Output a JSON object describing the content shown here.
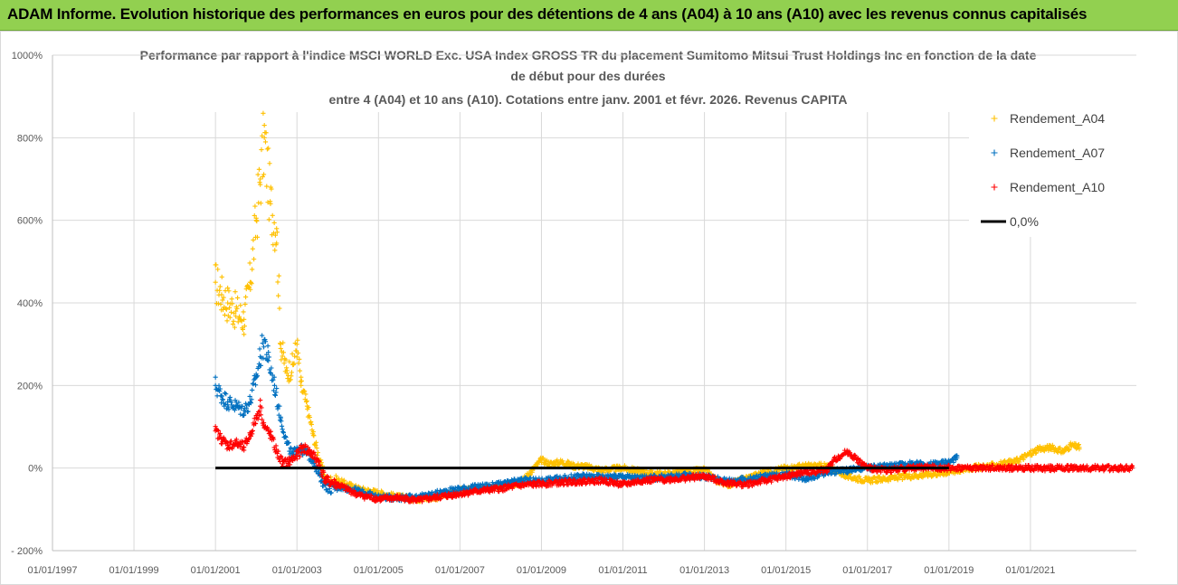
{
  "banner": {
    "title": "ADAM Informe. Evolution historique des performances en euros pour des détentions de 4 ans (A04) à 10 ans (A10) avec les revenus connus capitalisés",
    "color": "#92d050"
  },
  "chart_data": {
    "type": "scatter",
    "title_lines": [
      "Performance par rapport à l'indice MSCI WORLD Exc. USA Index GROSS TR  du placement Sumitomo Mitsui Trust Holdings Inc en fonction de la date",
      "de début pour des durées",
      "entre 4 (A04) et 10 ans (A10). Cotations entre janv. 2001 et févr. 2026. Revenus CAPITA"
    ],
    "xlabel": "",
    "ylabel": "",
    "x_range": [
      1997.0,
      2023.6
    ],
    "ylim": [
      -200,
      1000
    ],
    "y_ticks": [
      -200,
      0,
      200,
      400,
      600,
      800,
      1000
    ],
    "y_tick_labels": [
      "- 200%",
      "0%",
      "200%",
      "400%",
      "600%",
      "800%",
      "1000%"
    ],
    "x_ticks": [
      1997,
      1999,
      2001,
      2003,
      2005,
      2007,
      2009,
      2011,
      2013,
      2015,
      2017,
      2019,
      2021
    ],
    "x_tick_labels": [
      "01/01/1997",
      "01/01/1999",
      "01/01/2001",
      "01/01/2003",
      "01/01/2005",
      "01/01/2007",
      "01/01/2009",
      "01/01/2011",
      "01/01/2013",
      "01/01/2015",
      "01/01/2017",
      "01/01/2019",
      "01/01/2021"
    ],
    "grid": true,
    "legend_position": "right",
    "series": [
      {
        "name": "Rendement_A04",
        "color": "#ffc000",
        "marker": "+",
        "x": [
          2001.0,
          2001.15,
          2001.3,
          2001.5,
          2001.7,
          2001.85,
          2002.0,
          2002.1,
          2002.2,
          2002.35,
          2002.5,
          2002.6,
          2002.75,
          2002.9,
          2003.0,
          2003.1,
          2003.25,
          2003.4,
          2003.55,
          2003.7,
          2004.0,
          2004.5,
          2005.0,
          2005.5,
          2006.0,
          2006.5,
          2007.0,
          2007.5,
          2008.0,
          2008.5,
          2009.0,
          2009.2,
          2009.5,
          2009.8,
          2010.0,
          2010.5,
          2011.0,
          2011.5,
          2012.0,
          2012.5,
          2013.0,
          2013.3,
          2013.6,
          2014.0,
          2014.5,
          2015.0,
          2015.5,
          2016.0,
          2016.5,
          2017.0,
          2017.5,
          2018.0,
          2018.5,
          2019.0,
          2019.5,
          2020.0,
          2020.3,
          2020.6,
          2020.9,
          2021.2,
          2021.5,
          2021.8,
          2022.0,
          2022.2
        ],
        "values": [
          450,
          420,
          400,
          380,
          360,
          450,
          600,
          700,
          800,
          640,
          580,
          300,
          230,
          250,
          300,
          200,
          150,
          80,
          20,
          -30,
          -30,
          -50,
          -60,
          -70,
          -75,
          -70,
          -55,
          -50,
          -45,
          -35,
          20,
          10,
          15,
          5,
          5,
          -5,
          0,
          -10,
          -15,
          -10,
          -5,
          -30,
          -40,
          -25,
          -10,
          0,
          5,
          5,
          -20,
          -30,
          -25,
          -20,
          -15,
          -10,
          0,
          5,
          10,
          15,
          30,
          45,
          50,
          40,
          55,
          50
        ]
      },
      {
        "name": "Rendement_A07",
        "color": "#0070c0",
        "marker": "+",
        "x": [
          2001.0,
          2001.15,
          2001.3,
          2001.5,
          2001.7,
          2001.85,
          2002.0,
          2002.1,
          2002.2,
          2002.3,
          2002.45,
          2002.6,
          2002.75,
          2002.9,
          2003.0,
          2003.2,
          2003.4,
          2003.6,
          2003.8,
          2004.0,
          2004.5,
          2005.0,
          2005.5,
          2006.0,
          2006.5,
          2007.0,
          2007.5,
          2008.0,
          2008.5,
          2009.0,
          2009.5,
          2010.0,
          2010.5,
          2011.0,
          2011.5,
          2012.0,
          2012.5,
          2013.0,
          2013.5,
          2014.0,
          2014.5,
          2015.0,
          2015.5,
          2016.0,
          2016.5,
          2017.0,
          2017.5,
          2018.0,
          2018.5,
          2019.0,
          2019.2
        ],
        "values": [
          200,
          175,
          160,
          150,
          140,
          160,
          220,
          270,
          310,
          260,
          200,
          120,
          60,
          30,
          50,
          40,
          20,
          -30,
          -50,
          -45,
          -55,
          -70,
          -72,
          -70,
          -60,
          -50,
          -45,
          -40,
          -30,
          -30,
          -25,
          -20,
          -22,
          -20,
          -25,
          -22,
          -18,
          -20,
          -30,
          -28,
          -20,
          -15,
          -25,
          -10,
          -5,
          0,
          5,
          10,
          8,
          15,
          25
        ]
      },
      {
        "name": "Rendement_A10",
        "color": "#ff0000",
        "marker": "+",
        "x": [
          2001.0,
          2001.15,
          2001.3,
          2001.5,
          2001.7,
          2001.85,
          2002.0,
          2002.1,
          2002.2,
          2002.35,
          2002.5,
          2002.65,
          2002.8,
          2003.0,
          2003.15,
          2003.3,
          2003.5,
          2003.7,
          2004.0,
          2004.5,
          2005.0,
          2005.5,
          2006.0,
          2006.5,
          2007.0,
          2007.5,
          2008.0,
          2008.5,
          2009.0,
          2009.5,
          2010.0,
          2010.5,
          2011.0,
          2011.5,
          2012.0,
          2012.5,
          2013.0,
          2013.5,
          2014.0,
          2014.5,
          2015.0,
          2015.5,
          2016.0,
          2016.2,
          2016.5,
          2017.0,
          2017.5,
          2018.0,
          2018.5,
          2019.0,
          2019.5,
          2020.0,
          2020.5,
          2021.0,
          2021.5,
          2022.0,
          2022.5,
          2023.0,
          2023.5
        ],
        "values": [
          90,
          70,
          55,
          60,
          50,
          80,
          120,
          150,
          100,
          80,
          40,
          10,
          15,
          30,
          50,
          40,
          20,
          -30,
          -40,
          -65,
          -75,
          -72,
          -78,
          -70,
          -62,
          -55,
          -50,
          -42,
          -38,
          -35,
          -32,
          -30,
          -40,
          -30,
          -28,
          -25,
          -20,
          -35,
          -40,
          -30,
          -20,
          -10,
          -5,
          20,
          40,
          0,
          -5,
          0,
          2,
          0,
          0,
          0,
          0,
          0,
          0,
          0,
          0,
          0,
          0
        ]
      },
      {
        "name": "0,0%",
        "color": "#000000",
        "marker": "line",
        "x": [
          2001.0,
          2019.0
        ],
        "values": [
          0,
          0
        ]
      }
    ]
  }
}
